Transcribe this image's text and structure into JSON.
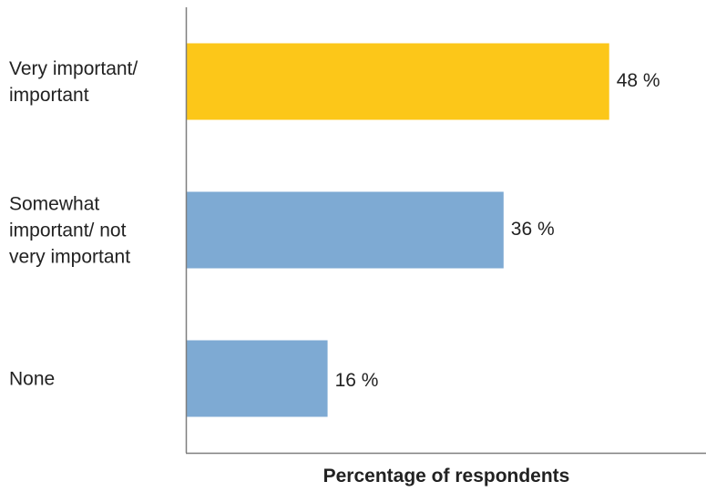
{
  "chart_data": {
    "type": "bar",
    "orientation": "horizontal",
    "categories": [
      "Very important/\nimportant",
      "Somewhat\nimportant/ not\nvery important",
      "None"
    ],
    "values": [
      48,
      36,
      16
    ],
    "value_labels": [
      "48 %",
      "36 %",
      "16 %"
    ],
    "colors": [
      "#FCC719",
      "#7EAAD3",
      "#7EAAD3"
    ],
    "axis_color": "#7F7F7F",
    "title": "",
    "xlabel": "Percentage of respondents",
    "ylabel": "",
    "xlim": [
      0,
      59
    ],
    "grid": false,
    "legend": "none"
  }
}
